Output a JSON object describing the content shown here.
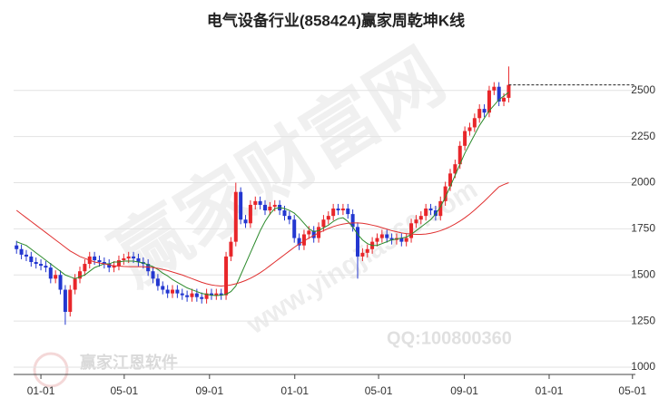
{
  "chart_data": {
    "type": "candlestick",
    "title": "电气设备行业(858424)赢家周乾坤K线",
    "watermarks": [
      "赢家财富网",
      "www.yingjia360.com",
      "QQ:100800360",
      "赢家江恩软件"
    ],
    "x": [
      -5,
      -4,
      -3,
      -2,
      -1,
      0,
      1,
      2,
      3,
      4,
      5,
      6,
      7,
      8,
      9,
      10,
      11,
      12,
      13,
      14,
      15,
      16,
      17,
      18,
      19,
      20,
      21,
      22,
      23,
      24,
      25,
      26,
      27,
      28,
      29,
      30,
      31,
      32,
      33,
      34,
      35,
      36,
      37,
      38,
      39,
      40,
      41,
      42,
      43,
      44,
      45,
      46,
      47,
      48,
      49,
      50,
      51,
      52,
      53,
      54,
      55,
      56,
      57,
      58,
      59,
      60,
      61,
      62,
      63,
      64,
      65,
      66,
      67,
      68,
      69,
      70,
      71,
      72,
      73,
      74,
      75,
      76,
      77,
      78,
      79,
      80,
      81,
      82,
      83,
      84,
      85,
      86,
      87,
      88,
      89,
      90,
      91,
      92,
      93,
      94,
      95,
      96
    ],
    "open": [
      1660,
      1640,
      1610,
      1600,
      1570,
      1560,
      1550,
      1540,
      1480,
      1500,
      1420,
      1300,
      1420,
      1480,
      1520,
      1560,
      1600,
      1580,
      1570,
      1560,
      1540,
      1550,
      1580,
      1590,
      1600,
      1590,
      1570,
      1560,
      1520,
      1480,
      1440,
      1420,
      1400,
      1420,
      1400,
      1390,
      1380,
      1400,
      1380,
      1370,
      1400,
      1390,
      1400,
      1390,
      1600,
      1680,
      1950,
      1800,
      1780,
      1880,
      1900,
      1880,
      1850,
      1870,
      1880,
      1850,
      1820,
      1800,
      1700,
      1660,
      1720,
      1740,
      1700,
      1760,
      1800,
      1820,
      1860,
      1850,
      1860,
      1830,
      1760,
      1600,
      1620,
      1640,
      1680,
      1700,
      1720,
      1700,
      1690,
      1700,
      1680,
      1700,
      1780,
      1800,
      1820,
      1860,
      1850,
      1820,
      1900,
      1980,
      2050,
      2100,
      2200,
      2280,
      2300,
      2350,
      2400,
      2380,
      2500,
      2520,
      2440,
      2460
    ],
    "high": [
      1685,
      1665,
      1635,
      1625,
      1595,
      1585,
      1575,
      1565,
      1525,
      1525,
      1445,
      1445,
      1505,
      1545,
      1585,
      1625,
      1625,
      1605,
      1595,
      1585,
      1575,
      1605,
      1615,
      1625,
      1625,
      1615,
      1595,
      1585,
      1545,
      1505,
      1465,
      1445,
      1445,
      1445,
      1425,
      1415,
      1425,
      1425,
      1405,
      1425,
      1425,
      1425,
      1425,
      1625,
      1705,
      2000,
      1975,
      1825,
      1905,
      1925,
      1925,
      1905,
      1895,
      1905,
      1905,
      1875,
      1845,
      1825,
      1725,
      1745,
      1765,
      1765,
      1785,
      1825,
      1845,
      1885,
      1885,
      1885,
      1885,
      1855,
      1785,
      1645,
      1665,
      1705,
      1725,
      1745,
      1745,
      1725,
      1725,
      1725,
      1725,
      1805,
      1825,
      1845,
      1885,
      1885,
      1875,
      1925,
      2005,
      2075,
      2125,
      2225,
      2305,
      2325,
      2375,
      2425,
      2425,
      2525,
      2545,
      2545,
      2485,
      2630
    ],
    "low": [
      1615,
      1585,
      1575,
      1545,
      1535,
      1525,
      1515,
      1455,
      1455,
      1395,
      1230,
      1275,
      1395,
      1455,
      1495,
      1535,
      1555,
      1545,
      1535,
      1515,
      1515,
      1525,
      1555,
      1565,
      1565,
      1545,
      1535,
      1495,
      1455,
      1415,
      1395,
      1375,
      1375,
      1375,
      1365,
      1355,
      1355,
      1355,
      1345,
      1345,
      1365,
      1365,
      1365,
      1365,
      1575,
      1655,
      1775,
      1755,
      1755,
      1855,
      1855,
      1825,
      1825,
      1845,
      1825,
      1795,
      1775,
      1675,
      1635,
      1635,
      1695,
      1675,
      1675,
      1735,
      1775,
      1795,
      1825,
      1825,
      1805,
      1735,
      1480,
      1575,
      1595,
      1615,
      1655,
      1675,
      1675,
      1665,
      1665,
      1655,
      1655,
      1675,
      1755,
      1775,
      1795,
      1825,
      1795,
      1795,
      1875,
      1955,
      2025,
      2075,
      2175,
      2255,
      2275,
      2325,
      2355,
      2355,
      2475,
      2415,
      2415,
      2435
    ],
    "close": [
      1640,
      1610,
      1600,
      1570,
      1560,
      1550,
      1540,
      1480,
      1500,
      1420,
      1300,
      1420,
      1480,
      1520,
      1560,
      1600,
      1580,
      1570,
      1560,
      1540,
      1550,
      1580,
      1590,
      1600,
      1590,
      1570,
      1560,
      1520,
      1480,
      1440,
      1420,
      1400,
      1420,
      1400,
      1390,
      1380,
      1400,
      1380,
      1370,
      1400,
      1390,
      1400,
      1390,
      1600,
      1680,
      1950,
      1800,
      1780,
      1880,
      1900,
      1880,
      1850,
      1870,
      1880,
      1850,
      1820,
      1800,
      1700,
      1660,
      1720,
      1740,
      1700,
      1760,
      1800,
      1820,
      1860,
      1850,
      1860,
      1830,
      1760,
      1600,
      1620,
      1640,
      1680,
      1700,
      1720,
      1700,
      1690,
      1700,
      1680,
      1700,
      1780,
      1800,
      1820,
      1860,
      1850,
      1820,
      1900,
      1980,
      2050,
      2100,
      2200,
      2280,
      2300,
      2350,
      2400,
      2380,
      2500,
      2520,
      2440,
      2460,
      2530
    ],
    "up_color": "#e8262a",
    "down_color": "#2337d0",
    "moving_averages": [
      {
        "color": "#2b8a2b",
        "values": [
          1680,
          1670,
          1660,
          1640,
          1620,
          1600,
          1580,
          1560,
          1540,
          1520,
          1500,
          1490,
          1480,
          1490,
          1500,
          1520,
          1540,
          1550,
          1560,
          1560,
          1570,
          1570,
          1575,
          1575,
          1575,
          1570,
          1565,
          1555,
          1545,
          1530,
          1510,
          1495,
          1475,
          1460,
          1445,
          1430,
          1420,
          1410,
          1400,
          1395,
          1390,
          1388,
          1390,
          1395,
          1410,
          1440,
          1500,
          1560,
          1620,
          1680,
          1740,
          1790,
          1830,
          1860,
          1865,
          1860,
          1850,
          1835,
          1810,
          1780,
          1750,
          1735,
          1740,
          1755,
          1770,
          1790,
          1805,
          1810,
          1790,
          1760,
          1720,
          1690,
          1670,
          1660,
          1660,
          1670,
          1680,
          1690,
          1695,
          1700,
          1705,
          1720,
          1740,
          1760,
          1780,
          1800,
          1830,
          1870,
          1920,
          1980,
          2040,
          2100,
          2160,
          2210,
          2260,
          2310,
          2350,
          2390,
          2420,
          2450,
          2470,
          2490
        ]
      },
      {
        "color": "#e03030",
        "values": [
          1850,
          1830,
          1810,
          1790,
          1770,
          1750,
          1730,
          1710,
          1690,
          1670,
          1650,
          1630,
          1615,
          1600,
          1590,
          1580,
          1570,
          1565,
          1560,
          1555,
          1550,
          1548,
          1546,
          1545,
          1545,
          1545,
          1544,
          1543,
          1540,
          1536,
          1530,
          1524,
          1516,
          1508,
          1500,
          1490,
          1480,
          1470,
          1460,
          1452,
          1446,
          1442,
          1440,
          1442,
          1446,
          1452,
          1460,
          1470,
          1482,
          1496,
          1512,
          1530,
          1550,
          1570,
          1590,
          1610,
          1630,
          1650,
          1668,
          1684,
          1700,
          1714,
          1728,
          1740,
          1752,
          1762,
          1770,
          1776,
          1780,
          1782,
          1782,
          1780,
          1776,
          1770,
          1764,
          1756,
          1748,
          1740,
          1734,
          1728,
          1724,
          1722,
          1720,
          1720,
          1722,
          1726,
          1732,
          1740,
          1750,
          1762,
          1776,
          1792,
          1810,
          1830,
          1852,
          1876,
          1900,
          1926,
          1952,
          1978,
          1990,
          2000
        ]
      }
    ],
    "xlim": [
      -5.6,
      122
    ],
    "xticks": [
      {
        "value": 0,
        "label": "01-01"
      },
      {
        "value": 17.1,
        "label": "05-01"
      },
      {
        "value": 34.6,
        "label": "09-01"
      },
      {
        "value": 52.1,
        "label": "01-01"
      },
      {
        "value": 69.3,
        "label": "05-01"
      },
      {
        "value": 86.9,
        "label": "09-01"
      },
      {
        "value": 104.3,
        "label": "01-01"
      },
      {
        "value": 121.4,
        "label": "05-01"
      }
    ],
    "ylim": [
      1000,
      2720
    ],
    "yticks": [
      1000,
      1250,
      1500,
      1750,
      2000,
      2250,
      2500
    ],
    "grid": true
  }
}
